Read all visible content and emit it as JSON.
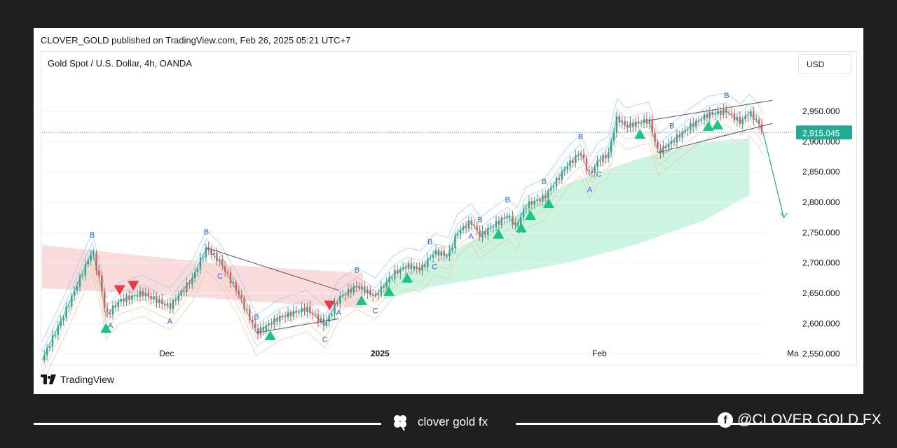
{
  "header": {
    "publisher_line": "CLOVER_GOLD published on TradingView.com, Feb 26, 2025 05:21 UTC+7"
  },
  "symbol": {
    "title": "Gold Spot / U.S. Dollar, 4h, OANDA"
  },
  "currency_button": {
    "label": "USD"
  },
  "chart_data": {
    "type": "line",
    "title": "Gold Spot / U.S. Dollar, 4h, OANDA",
    "xlabel": "",
    "ylabel": "",
    "x_ticks": [
      "Dec",
      "2025",
      "Feb",
      "Ma"
    ],
    "ylim": [
      2530,
      2980
    ],
    "y_ticks": [
      "2,550.000",
      "2,600.000",
      "2,650.000",
      "2,700.000",
      "2,750.000",
      "2,800.000",
      "2,850.000",
      "2,900.000",
      "2,950.000"
    ],
    "y_tick_values": [
      2550,
      2600,
      2650,
      2700,
      2750,
      2800,
      2850,
      2900,
      2950
    ],
    "current_price": {
      "value": 2915.045,
      "label": "2,915.045"
    },
    "series": [
      {
        "color": "#131722",
        "points": [
          [
            0,
            2540
          ],
          [
            10,
            2618
          ],
          [
            22,
            2720
          ],
          [
            26,
            2660
          ],
          [
            28,
            2612
          ],
          [
            34,
            2638
          ],
          [
            44,
            2650
          ],
          [
            56,
            2628
          ],
          [
            66,
            2675
          ],
          [
            72,
            2725
          ],
          [
            78,
            2702
          ],
          [
            86,
            2650
          ],
          [
            94,
            2585
          ],
          [
            104,
            2610
          ],
          [
            116,
            2625
          ],
          [
            124,
            2598
          ],
          [
            130,
            2642
          ],
          [
            138,
            2662
          ],
          [
            146,
            2645
          ],
          [
            154,
            2682
          ],
          [
            160,
            2695
          ],
          [
            166,
            2690
          ],
          [
            172,
            2718
          ],
          [
            178,
            2712
          ],
          [
            182,
            2750
          ],
          [
            188,
            2768
          ],
          [
            192,
            2745
          ],
          [
            198,
            2762
          ],
          [
            204,
            2778
          ],
          [
            208,
            2760
          ],
          [
            212,
            2795
          ],
          [
            220,
            2808
          ],
          [
            224,
            2828
          ],
          [
            230,
            2860
          ],
          [
            236,
            2882
          ],
          [
            240,
            2845
          ],
          [
            244,
            2870
          ],
          [
            248,
            2878
          ],
          [
            252,
            2940
          ],
          [
            256,
            2925
          ],
          [
            262,
            2932
          ],
          [
            266,
            2935
          ],
          [
            270,
            2882
          ],
          [
            276,
            2900
          ],
          [
            284,
            2925
          ],
          [
            292,
            2945
          ],
          [
            300,
            2950
          ],
          [
            306,
            2932
          ],
          [
            310,
            2948
          ],
          [
            314,
            2930
          ],
          [
            316,
            2915
          ]
        ]
      }
    ],
    "wave_labels": [
      "B",
      "C",
      "A",
      "B",
      "C",
      "A",
      "B",
      "C",
      "A",
      "B",
      "C",
      "A",
      "B",
      "C",
      "A",
      "B",
      "B",
      "A",
      "B",
      "B",
      "A",
      "C",
      "A",
      "B",
      "B"
    ],
    "signals": {
      "buy_color": "#16c784",
      "sell_color": "#f23645"
    },
    "colors": {
      "up": "#26a69a",
      "down": "#ef5350",
      "zone_fill": "#b9f2d6",
      "band": "#c6e9f6",
      "label": "#2962ff"
    }
  },
  "footer": {
    "tradingview_label": "TradingView",
    "brand_text": "clover gold fx",
    "social_handle": "@CLOVER GOLD FX"
  }
}
